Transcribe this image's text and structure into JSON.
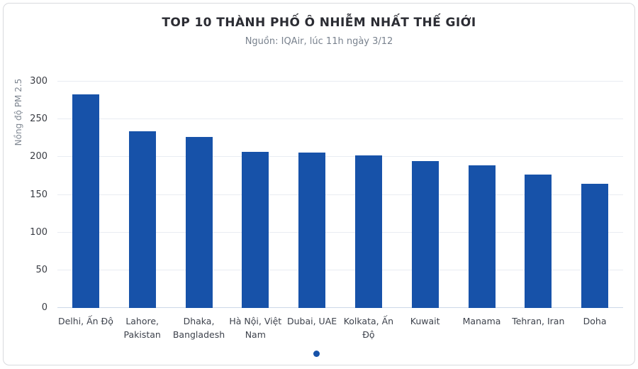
{
  "chart_data": {
    "type": "bar",
    "title": "TOP 10 THÀNH PHỐ Ô NHIỄM NHẤT THẾ GIỚI",
    "subtitle": "Nguồn: IQAir, lúc 11h ngày 3/12",
    "ylabel": "Nồng độ PM 2.5",
    "xlabel": "",
    "categories": [
      "Delhi, Ấn Độ",
      "Lahore, Pakistan",
      "Dhaka, Bangladesh",
      "Hà Nội, Việt Nam",
      "Dubai, UAE",
      "Kolkata, Ấn Độ",
      "Kuwait",
      "Manama",
      "Tehran, Iran",
      "Doha"
    ],
    "values": [
      283,
      234,
      227,
      207,
      206,
      202,
      195,
      189,
      177,
      165
    ],
    "ylim": [
      0,
      300
    ],
    "yticks": [
      0,
      50,
      100,
      150,
      200,
      250,
      300
    ],
    "grid": true,
    "legend": {
      "style": "single-dot",
      "position": "bottom-center"
    },
    "colors": {
      "bar": "#1752a9",
      "grid_line": "#e9ecf2",
      "baseline": "#ccd7e7",
      "title": "#2b2c33",
      "subtitle": "#79828e",
      "tick_label": "#3a3d44",
      "x_label": "#3d424c",
      "axis_title": "#7e8691",
      "card_border": "#d9dade",
      "background": "#ffffff"
    }
  }
}
